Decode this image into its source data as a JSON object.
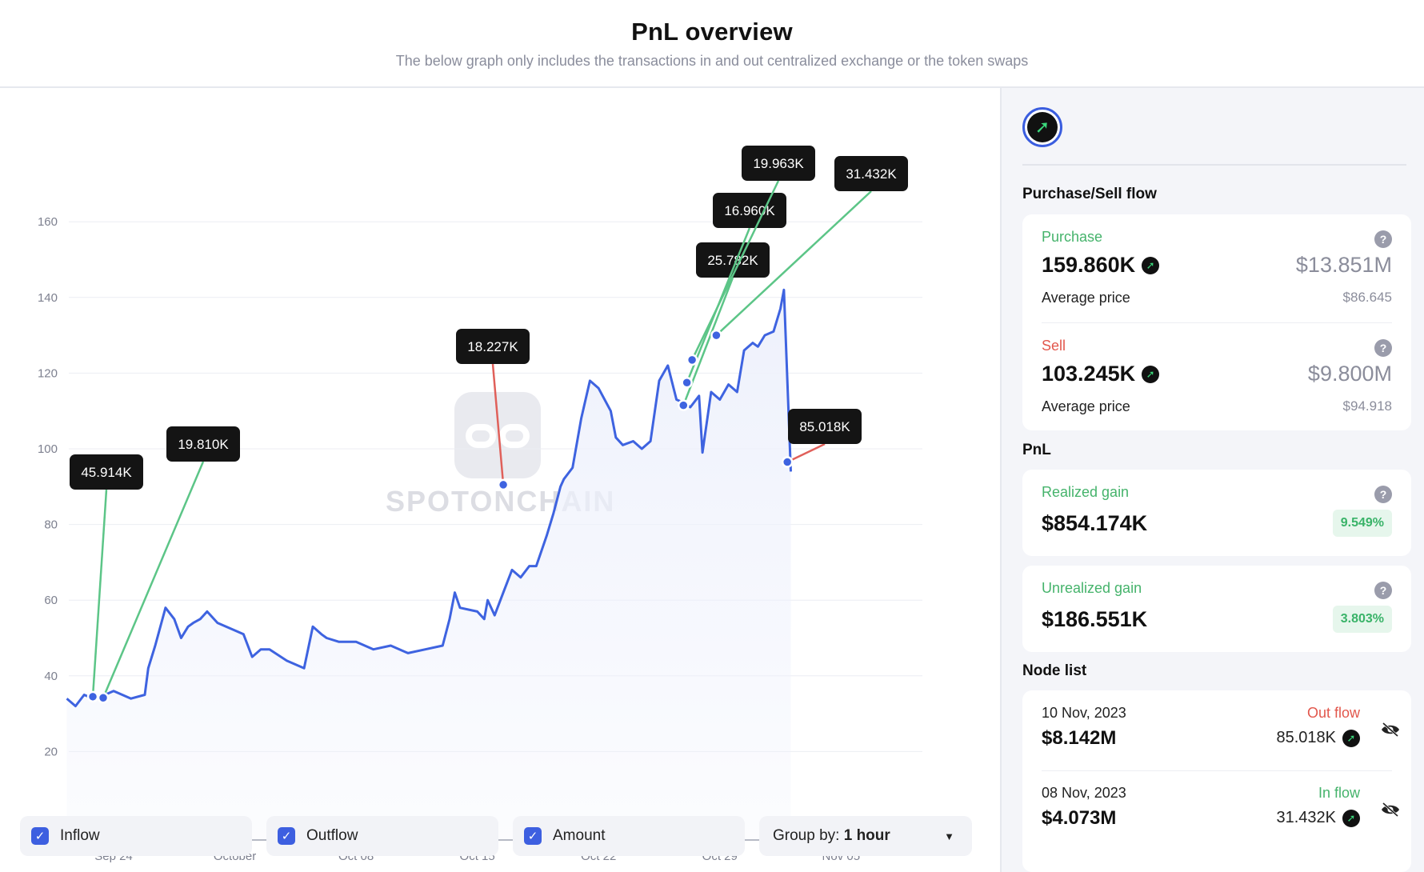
{
  "header": {
    "title": "PnL overview",
    "subtitle": "The below graph only includes the transactions in and out centralized exchange or the token swaps"
  },
  "watermark": {
    "text": "SPOTONCHAIN"
  },
  "chart_data": {
    "type": "area",
    "y_ticks": [
      "160",
      "140",
      "120",
      "100",
      "80",
      "60",
      "40",
      "20"
    ],
    "ylim": [
      0,
      160
    ],
    "x_ticks": [
      "Sep 24",
      "October",
      "Oct 08",
      "Oct 15",
      "Oct 22",
      "Oct 29",
      "Nov 05"
    ],
    "series": [
      {
        "x_days": [
          -2.7,
          -2.2,
          -1.7,
          -1.2,
          -0.5,
          0,
          1,
          1.8,
          2,
          2.4,
          3,
          3.5,
          3.9,
          4.3,
          4.6,
          5,
          5.4,
          6,
          7,
          7.5,
          8,
          8.5,
          9,
          10,
          11,
          11.5,
          12,
          12.3,
          13,
          14,
          15,
          16,
          17,
          18,
          19,
          19.4,
          19.7,
          20,
          21,
          21.4,
          21.6,
          22,
          22.5,
          23,
          23.5,
          24,
          24.4,
          25,
          25.4,
          25.8,
          26,
          26.5,
          27,
          27.5,
          28,
          28.7,
          29,
          29.4,
          30,
          30.5,
          31,
          31.5,
          32,
          32.5,
          33,
          33.3,
          33.8,
          34,
          34.5,
          35,
          35.5,
          36,
          36.4,
          36.9,
          37.2,
          37.6,
          38.1,
          38.5,
          38.7,
          39.1
        ],
        "values": [
          34,
          32,
          35,
          34,
          35,
          36,
          34,
          35,
          42,
          48,
          58,
          55,
          50,
          53,
          54,
          55,
          57,
          54,
          52,
          51,
          45,
          47,
          47,
          44,
          42,
          53,
          51,
          50,
          49,
          49,
          47,
          48,
          46,
          47,
          48,
          55,
          62,
          58,
          57,
          55,
          60,
          56,
          62,
          68,
          66,
          69,
          69,
          77,
          83,
          90,
          92,
          95,
          108,
          118,
          116,
          110,
          103,
          101,
          102,
          100,
          102,
          118,
          122,
          113,
          112,
          111,
          114,
          99,
          115,
          113,
          117,
          115,
          126,
          128,
          127,
          130,
          131,
          137,
          142,
          94
        ],
        "color": "#3e63e0"
      }
    ],
    "annotations": [
      {
        "label": "45.914K",
        "day": -1.2,
        "value": 34.5,
        "flow": "in"
      },
      {
        "label": "19.810K",
        "day": -0.6,
        "value": 34.2,
        "flow": "in"
      },
      {
        "label": "18.227K",
        "day": 22.5,
        "value": 90.5,
        "flow": "out"
      },
      {
        "label": "25.782K",
        "day": 32.9,
        "value": 111.5,
        "flow": "in"
      },
      {
        "label": "16.960K",
        "day": 33.1,
        "value": 117.5,
        "flow": "in"
      },
      {
        "label": "19.963K",
        "day": 33.4,
        "value": 123.5,
        "flow": "in"
      },
      {
        "label": "31.432K",
        "day": 34.8,
        "value": 130.0,
        "flow": "in"
      },
      {
        "label": "85.018K",
        "day": 38.9,
        "value": 96.5,
        "flow": "out"
      }
    ],
    "colors": {
      "line": "#3e63e0",
      "inflow": "#5cc587",
      "outflow": "#e0605a",
      "area": "#eef1fc"
    },
    "grid": true
  },
  "filters": {
    "inflow": "Inflow",
    "outflow": "Outflow",
    "amount": "Amount",
    "group_by_label": "Group by:",
    "group_by_value": "1 hour"
  },
  "sidebar": {
    "purchase_sell_title": "Purchase/Sell flow",
    "purchase": {
      "label": "Purchase",
      "amount": "159.860K",
      "usd": "$13.851M",
      "avg_label": "Average price",
      "avg_value": "$86.645"
    },
    "sell": {
      "label": "Sell",
      "amount": "103.245K",
      "usd": "$9.800M",
      "avg_label": "Average price",
      "avg_value": "$94.918"
    },
    "pnl_title": "PnL",
    "realized": {
      "label": "Realized gain",
      "value": "$854.174K",
      "pct": "9.549%"
    },
    "unrealized": {
      "label": "Unrealized gain",
      "value": "$186.551K",
      "pct": "3.803%"
    },
    "node_list_title": "Node list",
    "nodes": [
      {
        "date": "10 Nov, 2023",
        "usd": "$8.142M",
        "flow": "Out flow",
        "amount": "85.018K"
      },
      {
        "date": "08 Nov, 2023",
        "usd": "$4.073M",
        "flow": "In flow",
        "amount": "31.432K"
      }
    ]
  },
  "icons": {
    "help": "?",
    "token": "token-arrow-icon",
    "hidden": "eye-off-icon",
    "check": "✓",
    "caret": "▼"
  }
}
